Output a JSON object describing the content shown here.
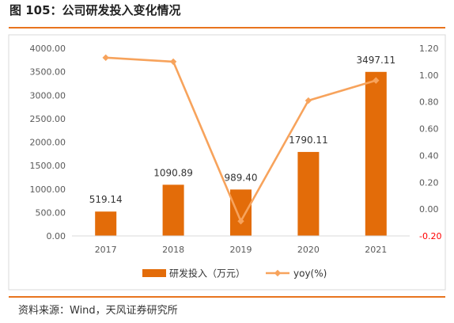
{
  "figure": {
    "title": "图 105：公司研发投入变化情况",
    "source": "资料来源：Wind，天风证券研究所"
  },
  "colors": {
    "bar": "#e36c09",
    "line": "#f7a35c",
    "rule": "#e8741e",
    "negative_tick": "#ff0000",
    "gridline": "#d9d9d9"
  },
  "chart_data": {
    "type": "bar+line",
    "title": "",
    "categories": [
      "2017",
      "2018",
      "2019",
      "2020",
      "2021"
    ],
    "series": [
      {
        "name": "研发投入（万元）",
        "type": "bar",
        "axis": "left",
        "values": [
          519.14,
          1090.89,
          989.4,
          1790.11,
          3497.11
        ],
        "labels": [
          "519.14",
          "1090.89",
          "989.40",
          "1790.11",
          "3497.11"
        ]
      },
      {
        "name": "yoy(%)",
        "type": "line",
        "axis": "right",
        "marker": "diamond",
        "values": [
          1.13,
          1.1,
          -0.09,
          0.81,
          0.96
        ]
      }
    ],
    "left_axis": {
      "ylim": [
        0,
        4000
      ],
      "ticks": [
        0,
        500,
        1000,
        1500,
        2000,
        2500,
        3000,
        3500,
        4000
      ],
      "tick_labels": [
        "0.00",
        "500.00",
        "1000.00",
        "1500.00",
        "2000.00",
        "2500.00",
        "3000.00",
        "3500.00",
        "4000.00"
      ]
    },
    "right_axis": {
      "ylim": [
        -0.2,
        1.2
      ],
      "ticks": [
        -0.2,
        0,
        0.2,
        0.4,
        0.6,
        0.8,
        1.0,
        1.2
      ],
      "tick_labels": [
        "-0.20",
        "0.00",
        "0.20",
        "0.40",
        "0.60",
        "0.80",
        "1.00",
        "1.20"
      ]
    },
    "grid": false,
    "legend": "bottom-center"
  }
}
